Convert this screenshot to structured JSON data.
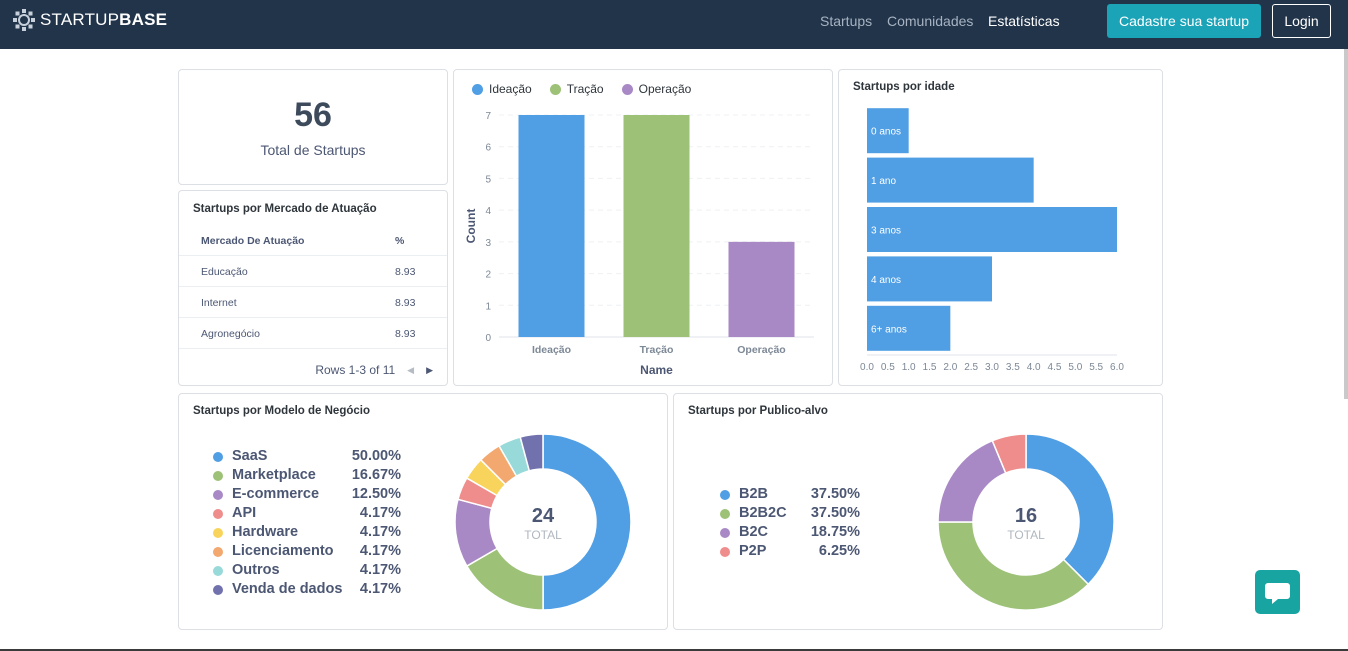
{
  "nav": {
    "logo_light": "STARTUP",
    "logo_bold": "BASE",
    "links": [
      "Startups",
      "Comunidades",
      "Estatísticas"
    ],
    "cta_label": "Cadastre sua startup",
    "login_label": "Login"
  },
  "total": {
    "value": "56",
    "label": "Total de Startups"
  },
  "market_table": {
    "title": "Startups por Mercado de Atuação",
    "columns": [
      "Mercado De Atuação",
      "%"
    ],
    "rows": [
      [
        "Educação",
        "8.93"
      ],
      [
        "Internet",
        "8.93"
      ],
      [
        "Agronegócio",
        "8.93"
      ]
    ],
    "pager": "Rows 1-3 of 11"
  },
  "stage_chart": {
    "legend": [
      "Ideação",
      "Tração",
      "Operação"
    ],
    "colors": [
      "#509ee3",
      "#9cc177",
      "#a989c5"
    ]
  },
  "age_chart": {
    "title": "Startups por idade"
  },
  "model_chart": {
    "title": "Startups por Modelo de Negócio",
    "total": "24",
    "total_label": "TOTAL"
  },
  "audience_chart": {
    "title": "Startups por Publico-alvo",
    "total": "16",
    "total_label": "TOTAL"
  },
  "chart_data": [
    {
      "type": "bar",
      "categories": [
        "Ideação",
        "Tração",
        "Operação"
      ],
      "values": [
        7,
        7,
        3
      ],
      "colors": [
        "#509ee3",
        "#9cc177",
        "#a989c5"
      ],
      "xlabel": "Name",
      "ylabel": "Count",
      "ylim": [
        0,
        7
      ],
      "yticks": [
        0,
        1,
        2,
        3,
        4,
        5,
        6,
        7
      ],
      "grid": true,
      "legend": "top"
    },
    {
      "type": "bar",
      "orientation": "horizontal",
      "title": "Startups por idade",
      "categories": [
        "0 anos",
        "1 ano",
        "3 anos",
        "4 anos",
        "6+ anos"
      ],
      "values": [
        1,
        4,
        6,
        3,
        2
      ],
      "color": "#509ee3",
      "xlim": [
        0,
        6
      ],
      "xticks": [
        "0.0",
        "0.5",
        "1.0",
        "1.5",
        "2.0",
        "2.5",
        "3.0",
        "3.5",
        "4.0",
        "4.5",
        "5.0",
        "5.5",
        "6.0"
      ]
    },
    {
      "type": "pie",
      "donut": true,
      "title": "Startups por Modelo de Negócio",
      "total": 24,
      "labels": [
        "SaaS",
        "Marketplace",
        "E-commerce",
        "API",
        "Hardware",
        "Licenciamento",
        "Outros",
        "Venda de dados"
      ],
      "values": [
        50.0,
        16.67,
        12.5,
        4.17,
        4.17,
        4.17,
        4.17,
        4.17
      ],
      "display": [
        "50.00%",
        "16.67%",
        "12.50%",
        "4.17%",
        "4.17%",
        "4.17%",
        "4.17%",
        "4.17%"
      ],
      "colors": [
        "#509ee3",
        "#9cc177",
        "#a989c5",
        "#ef8c8c",
        "#f9d45c",
        "#f2a86f",
        "#98d9d9",
        "#7172ad"
      ],
      "legend": "left"
    },
    {
      "type": "pie",
      "donut": true,
      "title": "Startups por Publico-alvo",
      "total": 16,
      "labels": [
        "B2B",
        "B2B2C",
        "B2C",
        "P2P"
      ],
      "values": [
        37.5,
        37.5,
        18.75,
        6.25
      ],
      "display": [
        "37.50%",
        "37.50%",
        "18.75%",
        "6.25%"
      ],
      "colors": [
        "#509ee3",
        "#9cc177",
        "#a989c5",
        "#ef8c8c"
      ],
      "legend": "left"
    }
  ]
}
